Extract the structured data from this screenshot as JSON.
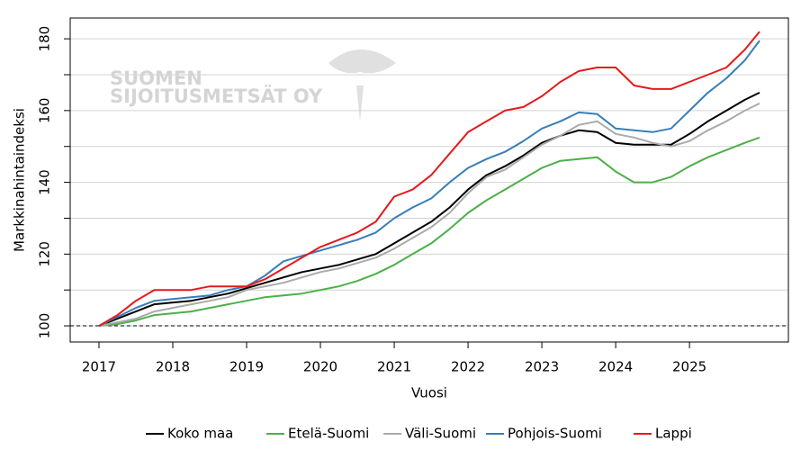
{
  "chart_data": {
    "type": "line",
    "watermark": [
      "SUOMEN",
      "SIJOITUSMETSÄT OY"
    ],
    "xlabel": "Vuosi",
    "ylabel": "Markkinahintaindeksi",
    "x": [
      2017,
      2017.25,
      2017.5,
      2017.75,
      2018,
      2018.25,
      2018.5,
      2018.75,
      2019,
      2019.25,
      2019.5,
      2019.75,
      2020,
      2020.25,
      2020.5,
      2020.75,
      2021,
      2021.25,
      2021.5,
      2021.75,
      2022,
      2022.25,
      2022.5,
      2022.75,
      2023,
      2023.25,
      2023.5,
      2023.75,
      2024,
      2024.25,
      2024.5,
      2024.75,
      2025,
      2025.25,
      2025.5,
      2025.75,
      2025.95
    ],
    "series": [
      {
        "name": "Koko maa",
        "color": "#000000",
        "values": [
          100,
          102,
          104,
          106,
          106.5,
          107,
          108,
          109,
          110.5,
          112,
          113.5,
          115,
          116,
          117,
          118.5,
          120,
          123,
          126,
          129,
          133,
          138,
          142,
          144.5,
          147.5,
          151,
          153,
          154.5,
          154,
          151,
          150.5,
          150.5,
          150.5,
          153.5,
          157,
          160,
          163,
          165
        ]
      },
      {
        "name": "Etelä-Suomi",
        "color": "#4daf4a",
        "values": [
          100,
          100.5,
          101.5,
          103,
          103.5,
          104,
          105,
          106,
          107,
          108,
          108.5,
          109,
          110,
          111,
          112.5,
          114.5,
          117,
          120,
          123,
          127,
          131.5,
          135,
          138,
          141,
          144,
          146,
          146.5,
          147,
          143,
          140,
          140,
          141.5,
          144.5,
          147,
          149,
          151,
          152.5
        ]
      },
      {
        "name": "Väli-Suomi",
        "color": "#aaaaaa",
        "values": [
          100,
          101,
          102,
          104,
          105,
          106,
          107,
          108,
          110,
          111,
          112,
          113.5,
          115,
          116,
          117.5,
          119,
          121.5,
          124.5,
          127.5,
          131.5,
          137,
          141.5,
          143.5,
          147,
          150.5,
          153,
          156,
          157,
          153.5,
          152.5,
          151,
          150,
          151.5,
          154.5,
          157,
          160,
          162
        ]
      },
      {
        "name": "Pohjois-Suomi",
        "color": "#377eb8",
        "values": [
          100,
          102.5,
          105,
          107,
          107.5,
          108,
          108.5,
          110,
          111,
          114,
          118,
          119.5,
          121,
          122.5,
          124,
          126,
          130,
          133,
          135.5,
          140,
          144,
          146.5,
          148.5,
          151.5,
          155,
          157,
          159.5,
          159,
          155,
          154.5,
          154,
          155,
          160,
          165,
          169,
          174,
          179.5
        ]
      },
      {
        "name": "Lappi",
        "color": "#e41a1c",
        "values": [
          100,
          103,
          107,
          110,
          110,
          110,
          111,
          111,
          111,
          113,
          116,
          119,
          122,
          124,
          126,
          129,
          136,
          138,
          142,
          148,
          154,
          157,
          160,
          161,
          164,
          168,
          171,
          172,
          172,
          167,
          166,
          166,
          168,
          170,
          172,
          177,
          182
        ]
      }
    ],
    "xlim": [
      2016.61,
      2026.34
    ],
    "xticks": [
      2017,
      2018,
      2019,
      2020,
      2021,
      2022,
      2023,
      2024,
      2025
    ],
    "ylim": [
      95.5,
      185.8
    ],
    "yticks": [
      100,
      120,
      140,
      160,
      180
    ],
    "minor_yticks": [
      110,
      130,
      150,
      170
    ],
    "grid": true,
    "hline": 100,
    "legend": "bottom"
  }
}
